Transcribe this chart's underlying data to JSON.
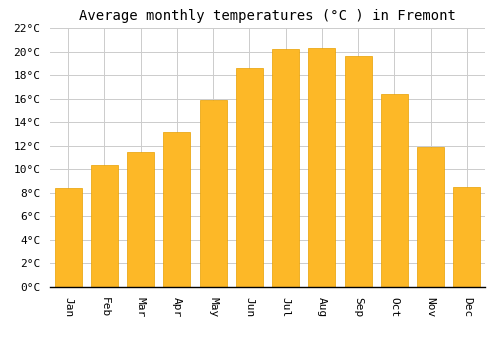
{
  "months": [
    "Jan",
    "Feb",
    "Mar",
    "Apr",
    "May",
    "Jun",
    "Jul",
    "Aug",
    "Sep",
    "Oct",
    "Nov",
    "Dec"
  ],
  "values": [
    8.4,
    10.4,
    11.5,
    13.2,
    15.9,
    18.6,
    20.2,
    20.3,
    19.6,
    16.4,
    11.9,
    8.5
  ],
  "bar_color": "#FDB827",
  "bar_edge_color": "#E8A000",
  "title": "Average monthly temperatures (°C ) in Fremont",
  "ylim": [
    0,
    22
  ],
  "ytick_step": 2,
  "background_color": "#FFFFFF",
  "grid_color": "#CCCCCC",
  "title_fontsize": 10,
  "tick_fontsize": 8,
  "font_family": "monospace"
}
